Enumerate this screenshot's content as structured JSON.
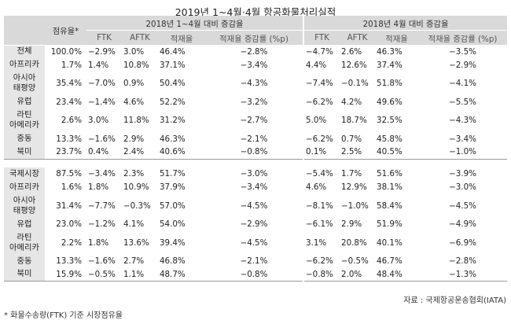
{
  "title": "2019년 1~4월·4월 항공화물처리실적",
  "headers": {
    "share": "점유율*",
    "group1": "2018년 1~4월 대비 증감율",
    "group2": "2018년 4월 대비 증감율",
    "cols": [
      "FTK",
      "AFTK",
      "적재율",
      "적재율 증감률 (%p)"
    ]
  },
  "block1": [
    {
      "region": [
        "전체"
      ],
      "share": "100.0%",
      "a": [
        "−2.9%",
        "3.0%",
        "46.4%",
        "−2.8%"
      ],
      "b": [
        "−4.7%",
        "2.6%",
        "46.3%",
        "−3.5%"
      ]
    },
    {
      "region": [
        "아프리카"
      ],
      "share": "1.7%",
      "a": [
        "1.4%",
        "10.8%",
        "37.1%",
        "−3.4%"
      ],
      "b": [
        "4.4%",
        "12.6%",
        "37.4%",
        "−2.9%"
      ]
    },
    {
      "region": [
        "아시아",
        "태평양"
      ],
      "share": "35.4%",
      "a": [
        "−7.0%",
        "0.9%",
        "50.4%",
        "−4.3%"
      ],
      "b": [
        "−7.4%",
        "−0.1%",
        "51.8%",
        "−4.1%"
      ]
    },
    {
      "region": [
        "유럽"
      ],
      "share": "23.4%",
      "a": [
        "−1.4%",
        "4.6%",
        "52.2%",
        "−3.2%"
      ],
      "b": [
        "−6.2%",
        "4.2%",
        "49.6%",
        "−5.5%"
      ]
    },
    {
      "region": [
        "라틴",
        "아메리카"
      ],
      "share": "2.6%",
      "a": [
        "3.0%",
        "11.8%",
        "31.2%",
        "−2.7%"
      ],
      "b": [
        "5.0%",
        "18.7%",
        "32.5%",
        "−4.3%"
      ]
    },
    {
      "region": [
        "중동"
      ],
      "share": "13.3%",
      "a": [
        "−1.6%",
        "2.9%",
        "46.3%",
        "−2.1%"
      ],
      "b": [
        "−6.2%",
        "0.7%",
        "45.8%",
        "−3.4%"
      ]
    },
    {
      "region": [
        "북미"
      ],
      "share": "23.7%",
      "a": [
        "0.4%",
        "2.4%",
        "40.6%",
        "−0.8%"
      ],
      "b": [
        "0.1%",
        "2.5%",
        "40.5%",
        "−1.0%"
      ]
    }
  ],
  "block2": [
    {
      "region": [
        "국제시장"
      ],
      "share": "87.5%",
      "a": [
        "−3.4%",
        "2.3%",
        "51.7%",
        "−3.0%"
      ],
      "b": [
        "−5.4%",
        "1.7%",
        "51.6%",
        "−3.9%"
      ]
    },
    {
      "region": [
        "아프리카"
      ],
      "share": "1.6%",
      "a": [
        "1.8%",
        "10.9%",
        "37.9%",
        "−3.4%"
      ],
      "b": [
        "4.6%",
        "12.9%",
        "38.1%",
        "−3.0%"
      ]
    },
    {
      "region": [
        "아시아",
        "태평양"
      ],
      "share": "31.4%",
      "a": [
        "−7.7%",
        "−0.3%",
        "57.0%",
        "−4.5%"
      ],
      "b": [
        "−8.1%",
        "−1.0%",
        "58.4%",
        "−4.5%"
      ]
    },
    {
      "region": [
        "유럽"
      ],
      "share": "23.0%",
      "a": [
        "−1.2%",
        "4.1%",
        "54.0%",
        "−2.9%"
      ],
      "b": [
        "−6.1%",
        "2.9%",
        "51.9%",
        "−4.9%"
      ]
    },
    {
      "region": [
        "라틴",
        "아메리카"
      ],
      "share": "2.2%",
      "a": [
        "1.8%",
        "13.6%",
        "39.4%",
        "−4.5%"
      ],
      "b": [
        "3.1%",
        "20.8%",
        "40.1%",
        "−6.9%"
      ]
    },
    {
      "region": [
        "중동"
      ],
      "share": "13.3%",
      "a": [
        "−1.6%",
        "2.7%",
        "46.8%",
        "−2.1%"
      ],
      "b": [
        "−6.2%",
        "−0.5%",
        "46.7%",
        "−2.8%"
      ]
    },
    {
      "region": [
        "북미"
      ],
      "share": "15.9%",
      "a": [
        "−0.5%",
        "1.1%",
        "48.7%",
        "−0.8%"
      ],
      "b": [
        "−0.8%",
        "2.0%",
        "48.4%",
        "−1.3%"
      ]
    }
  ],
  "source": "자료 : 국제항공운송협회(IATA)",
  "footnote": "* 화물수송량(FTK) 기준 시장점유율"
}
